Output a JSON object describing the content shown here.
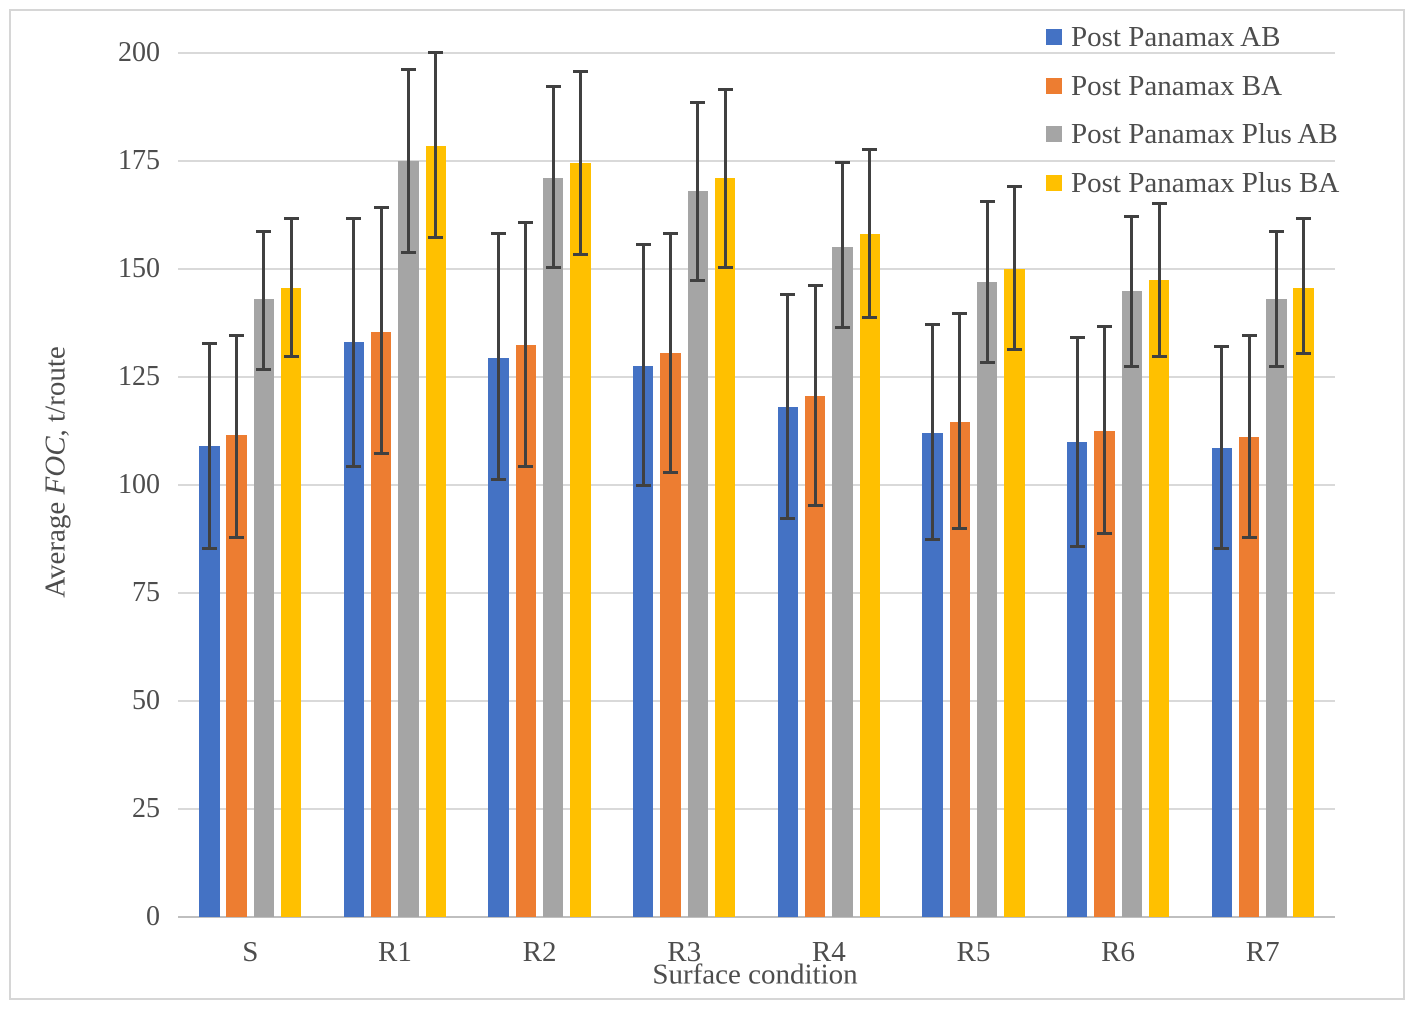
{
  "figure": {
    "background": "#ffffff",
    "border_color": "#d6d6d6"
  },
  "chart_data": {
    "type": "bar",
    "title": "",
    "xlabel": "Surface condition",
    "ylabel": "Average FOC, t/route",
    "ylabel_parts": {
      "prefix": "Average ",
      "italic": "FOC",
      "suffix": ", t/route"
    },
    "ylim": [
      0,
      200
    ],
    "yticks": [
      0,
      25,
      50,
      75,
      100,
      125,
      150,
      175,
      200
    ],
    "grid": "horizontal-only",
    "legend_position": "top-right",
    "categories": [
      "S",
      "R1",
      "R2",
      "R3",
      "R4",
      "R5",
      "R6",
      "R7"
    ],
    "series": [
      {
        "name": "Post Panamax AB",
        "color": "#4472C4",
        "values": [
          109,
          133,
          129.5,
          127.5,
          118,
          112,
          110,
          108.5
        ],
        "error_low": [
          85,
          104,
          101,
          99.5,
          92,
          87,
          85.5,
          85
        ],
        "error_high": [
          133,
          162,
          158.5,
          156,
          144.5,
          137.5,
          134.5,
          132.5
        ]
      },
      {
        "name": "Post Panamax BA",
        "color": "#ED7D31",
        "values": [
          111.5,
          135.5,
          132.5,
          130.5,
          120.5,
          114.5,
          112.5,
          111
        ],
        "error_low": [
          87.5,
          107,
          104,
          102.5,
          95,
          89.5,
          88.5,
          87.5
        ],
        "error_high": [
          135,
          164.5,
          161,
          158.5,
          146.5,
          140,
          137,
          135
        ]
      },
      {
        "name": "Post Panamax Plus AB",
        "color": "#A5A5A5",
        "values": [
          143,
          175,
          171,
          168,
          155,
          147,
          145,
          143
        ],
        "error_low": [
          126.5,
          153.5,
          150,
          147,
          136,
          128,
          127,
          127
        ],
        "error_high": [
          159,
          196.5,
          192.5,
          189,
          175,
          166,
          162.5,
          159
        ]
      },
      {
        "name": "Post Panamax Plus BA",
        "color": "#FFC000",
        "values": [
          145.5,
          178.5,
          174.5,
          171,
          158,
          150,
          147.5,
          145.5
        ],
        "error_low": [
          129.5,
          157,
          153,
          150,
          138.5,
          131,
          129.5,
          130
        ],
        "error_high": [
          162,
          200.5,
          196,
          192,
          178,
          169.5,
          165.5,
          162
        ]
      }
    ],
    "style": {
      "gridline_color": "#d9d9d9",
      "axis_line_color": "#bfbfbf",
      "error_bar_color": "#404040",
      "tick_label_color": "#4d4d4d"
    }
  }
}
